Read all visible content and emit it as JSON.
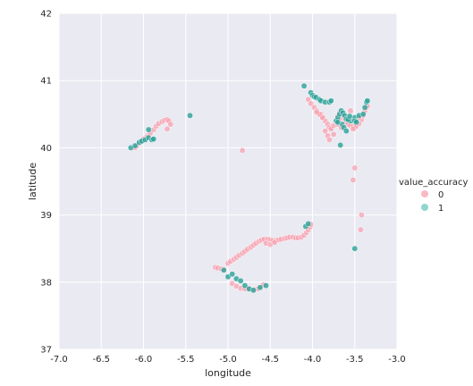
{
  "colors": {
    "background": "#eaeaf2",
    "grid": "#ffffff",
    "class_0": "#f7a1b0",
    "class_1": "#2aa198",
    "class_1_light": "#8fd6cf"
  },
  "chart_data": {
    "type": "scatter",
    "xlabel": "longitude",
    "ylabel": "latitude",
    "xlim": [
      -7.0,
      -3.0
    ],
    "ylim": [
      37,
      42
    ],
    "xticks": [
      "-7.0",
      "-6.5",
      "-6.0",
      "-5.5",
      "-5.0",
      "-4.5",
      "-4.0",
      "-3.5",
      "-3.0"
    ],
    "yticks": [
      "37",
      "38",
      "39",
      "40",
      "41",
      "42"
    ],
    "grid": true,
    "legend": {
      "title": "value_accuracy",
      "placement": "right",
      "entries": [
        "0",
        "1"
      ]
    },
    "series": [
      {
        "name": "0",
        "color": "#f7a1b0",
        "x": [
          -6.1,
          -6.05,
          -6.0,
          -5.95,
          -5.92,
          -5.88,
          -5.85,
          -5.82,
          -5.78,
          -5.75,
          -5.72,
          -5.7,
          -5.68,
          -5.72,
          -6.08,
          -6.02,
          -5.96,
          -4.83,
          -4.05,
          -4.02,
          -3.98,
          -3.95,
          -3.9,
          -3.88,
          -3.85,
          -3.82,
          -3.8,
          -3.78,
          -3.75,
          -3.72,
          -3.7,
          -3.68,
          -3.65,
          -3.62,
          -3.6,
          -3.58,
          -3.55,
          -3.52,
          -3.5,
          -3.48,
          -3.45,
          -3.42,
          -3.4,
          -3.38,
          -3.36,
          -3.35,
          -3.85,
          -3.82,
          -3.8,
          -3.75,
          -3.7,
          -3.68,
          -3.66,
          -3.88,
          -3.92,
          -3.95,
          -3.52,
          -3.48,
          -3.45,
          -3.55,
          -3.5,
          -3.52,
          -3.42,
          -3.43,
          -5.15,
          -5.12,
          -5.08,
          -5.05,
          -5.0,
          -4.97,
          -4.93,
          -4.9,
          -4.87,
          -4.83,
          -4.8,
          -4.77,
          -4.73,
          -4.7,
          -4.67,
          -4.63,
          -4.6,
          -4.57,
          -4.53,
          -4.5,
          -4.47,
          -4.43,
          -4.4,
          -4.37,
          -4.33,
          -4.3,
          -4.27,
          -4.23,
          -4.2,
          -4.17,
          -4.13,
          -4.1,
          -4.07,
          -4.05,
          -4.03,
          -4.02,
          -4.55,
          -4.5,
          -4.45,
          -4.95,
          -4.9,
          -4.85,
          -4.8,
          -4.75,
          -4.7,
          -4.65,
          -4.62,
          -4.6,
          -4.58
        ],
        "y": [
          40.0,
          40.07,
          40.13,
          40.18,
          40.22,
          40.27,
          40.32,
          40.36,
          40.39,
          40.41,
          40.42,
          40.4,
          40.35,
          40.28,
          40.03,
          40.1,
          40.16,
          39.96,
          40.72,
          40.66,
          40.6,
          40.55,
          40.5,
          40.45,
          40.4,
          40.35,
          40.3,
          40.28,
          40.33,
          40.4,
          40.47,
          40.52,
          40.48,
          40.43,
          40.38,
          40.35,
          40.33,
          40.32,
          40.3,
          40.32,
          40.36,
          40.42,
          40.48,
          40.55,
          40.6,
          40.62,
          40.25,
          40.18,
          40.12,
          40.2,
          40.35,
          40.43,
          40.3,
          40.45,
          40.5,
          40.53,
          40.28,
          40.4,
          40.45,
          40.55,
          39.7,
          39.52,
          39.0,
          38.78,
          38.22,
          38.21,
          38.2,
          38.19,
          38.28,
          38.31,
          38.34,
          38.37,
          38.4,
          38.43,
          38.46,
          38.49,
          38.52,
          38.55,
          38.58,
          38.61,
          38.63,
          38.64,
          38.64,
          38.63,
          38.62,
          38.62,
          38.63,
          38.64,
          38.65,
          38.66,
          38.67,
          38.67,
          38.66,
          38.66,
          38.67,
          38.7,
          38.74,
          38.78,
          38.82,
          38.86,
          38.58,
          38.56,
          38.59,
          37.98,
          37.94,
          37.91,
          37.9,
          37.9,
          37.89,
          37.9,
          37.92,
          37.94,
          37.96
        ]
      },
      {
        "name": "1",
        "color": "#2aa198",
        "x": [
          -6.15,
          -6.1,
          -6.05,
          -6.02,
          -5.98,
          -5.94,
          -5.9,
          -5.88,
          -5.94,
          -5.45,
          -4.1,
          -4.02,
          -4.0,
          -3.98,
          -3.96,
          -3.92,
          -3.9,
          -3.85,
          -3.8,
          -3.78,
          -3.72,
          -3.7,
          -3.68,
          -3.66,
          -3.64,
          -3.62,
          -3.6,
          -3.55,
          -3.5,
          -3.45,
          -3.4,
          -3.38,
          -3.36,
          -3.35,
          -3.65,
          -3.63,
          -3.7,
          -3.6,
          -3.58,
          -3.56,
          -3.5,
          -3.48,
          -3.67,
          -3.5,
          -4.08,
          -4.05,
          -5.05,
          -5.0,
          -4.95,
          -4.9,
          -4.85,
          -4.8,
          -4.75,
          -4.7,
          -4.62,
          -4.55
        ],
        "y": [
          40.0,
          40.03,
          40.08,
          40.1,
          40.12,
          40.15,
          40.12,
          40.13,
          40.27,
          40.48,
          40.92,
          40.82,
          40.78,
          40.76,
          40.75,
          40.72,
          40.7,
          40.68,
          40.68,
          40.7,
          40.4,
          40.45,
          40.5,
          40.55,
          40.52,
          40.48,
          40.43,
          40.4,
          40.45,
          40.48,
          40.5,
          40.6,
          40.68,
          40.7,
          40.35,
          40.3,
          40.38,
          40.25,
          40.42,
          40.47,
          40.4,
          40.38,
          40.04,
          38.5,
          38.83,
          38.87,
          38.18,
          38.08,
          38.12,
          38.05,
          38.02,
          37.95,
          37.9,
          37.88,
          37.92,
          37.95
        ]
      }
    ]
  }
}
